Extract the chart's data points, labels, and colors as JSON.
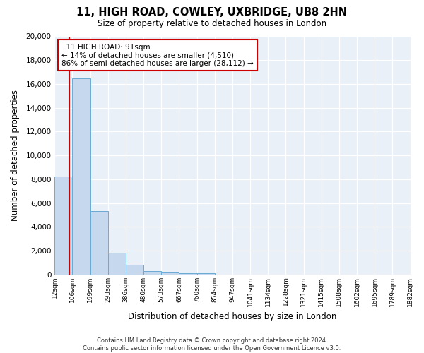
{
  "title": "11, HIGH ROAD, COWLEY, UXBRIDGE, UB8 2HN",
  "subtitle": "Size of property relative to detached houses in London",
  "xlabel": "Distribution of detached houses by size in London",
  "ylabel": "Number of detached properties",
  "bin_labels": [
    "12sqm",
    "106sqm",
    "199sqm",
    "293sqm",
    "386sqm",
    "480sqm",
    "573sqm",
    "667sqm",
    "760sqm",
    "854sqm",
    "947sqm",
    "1041sqm",
    "1134sqm",
    "1228sqm",
    "1321sqm",
    "1415sqm",
    "1508sqm",
    "1602sqm",
    "1695sqm",
    "1789sqm",
    "1882sqm"
  ],
  "bar_heights": [
    8200,
    16500,
    5300,
    1800,
    800,
    300,
    200,
    100,
    100,
    0,
    0,
    0,
    0,
    0,
    0,
    0,
    0,
    0,
    0,
    0
  ],
  "bar_color": "#c5d8ee",
  "bar_edge_color": "#6aaad4",
  "annotation_title": "11 HIGH ROAD: 91sqm",
  "annotation_line1": "← 14% of detached houses are smaller (4,510)",
  "annotation_line2": "86% of semi-detached houses are larger (28,112) →",
  "red_line_color": "#cc0000",
  "ylim": [
    0,
    20000
  ],
  "yticks": [
    0,
    2000,
    4000,
    6000,
    8000,
    10000,
    12000,
    14000,
    16000,
    18000,
    20000
  ],
  "footer1": "Contains HM Land Registry data © Crown copyright and database right 2024.",
  "footer2": "Contains public sector information licensed under the Open Government Licence v3.0.",
  "bg_color": "#ffffff",
  "plot_bg_color": "#eaf0f8"
}
